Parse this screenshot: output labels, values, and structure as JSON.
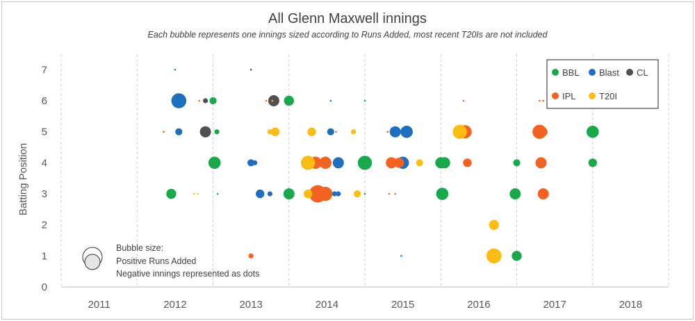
{
  "chart_data": {
    "type": "bubble",
    "title": "All Glenn Maxwell innings",
    "subtitle": "Each bubble represents one innings sized according to Runs Added, most recent T20Is are not included",
    "ylabel": "Batting Position",
    "xlabel": "",
    "x_ticks": [
      "2011",
      "2012",
      "2013",
      "2014",
      "2015",
      "2016",
      "2017",
      "2018"
    ],
    "y_ticks": [
      0,
      1,
      2,
      3,
      4,
      5,
      6,
      7
    ],
    "xlim": [
      2010.5,
      2018.5
    ],
    "ylim": [
      0,
      7.5
    ],
    "grid": "vertical-dashed",
    "legend_position": "top-right",
    "colors": {
      "BBL": "#19a84b",
      "Blast": "#1f6fbf",
      "CL": "#505050",
      "IPL": "#f26322",
      "T20I": "#fbbd13"
    },
    "series": [
      {
        "name": "BBL",
        "points": [
          [
            2011.95,
            3,
            4
          ],
          [
            2012.0,
            7,
            0
          ],
          [
            2012.5,
            6,
            2
          ],
          [
            2012.52,
            4,
            6
          ],
          [
            2012.55,
            5,
            1
          ],
          [
            2012.56,
            3,
            0
          ],
          [
            2013.5,
            6,
            4
          ],
          [
            2013.5,
            3,
            5
          ],
          [
            2014.5,
            4,
            8
          ],
          [
            2014.5,
            6,
            0
          ],
          [
            2014.5,
            3,
            0
          ],
          [
            2015.5,
            4,
            5
          ],
          [
            2015.55,
            4,
            5
          ],
          [
            2015.52,
            3,
            6
          ],
          [
            2016.5,
            4,
            2
          ],
          [
            2016.5,
            1,
            4
          ],
          [
            2016.48,
            3,
            5
          ],
          [
            2017.5,
            5,
            6
          ],
          [
            2017.5,
            4,
            3
          ]
        ]
      },
      {
        "name": "Blast",
        "points": [
          [
            2012.05,
            6,
            9
          ],
          [
            2012.05,
            5,
            2
          ],
          [
            2013.0,
            4,
            2
          ],
          [
            2013.05,
            4,
            1
          ],
          [
            2013.12,
            3,
            3
          ],
          [
            2013.25,
            3,
            1
          ],
          [
            2014.15,
            4,
            5
          ],
          [
            2014.05,
            6,
            0
          ],
          [
            2014.05,
            5,
            2
          ],
          [
            2014.1,
            3,
            1
          ],
          [
            2014.15,
            3,
            1
          ],
          [
            2014.9,
            5,
            5
          ],
          [
            2015.05,
            5,
            6
          ],
          [
            2015.0,
            4,
            6
          ],
          [
            2014.98,
            1,
            0
          ]
        ]
      },
      {
        "name": "CL",
        "points": [
          [
            2012.4,
            6,
            1
          ],
          [
            2012.4,
            5,
            5
          ],
          [
            2013.3,
            6,
            5
          ],
          [
            2013.0,
            7,
            0
          ]
        ]
      },
      {
        "name": "IPL",
        "points": [
          [
            2011.85,
            5,
            0
          ],
          [
            2012.32,
            6,
            0
          ],
          [
            2013.0,
            1,
            1
          ],
          [
            2013.2,
            6,
            0
          ],
          [
            2013.25,
            5,
            0
          ],
          [
            2013.85,
            4,
            6
          ],
          [
            2013.88,
            3,
            12
          ],
          [
            2013.98,
            3,
            8
          ],
          [
            2013.98,
            4,
            6
          ],
          [
            2014.12,
            5,
            0
          ],
          [
            2014.8,
            5,
            0
          ],
          [
            2014.85,
            4,
            5
          ],
          [
            2014.95,
            4,
            4
          ],
          [
            2014.82,
            3,
            0
          ],
          [
            2014.9,
            3,
            0
          ],
          [
            2015.8,
            6,
            0
          ],
          [
            2015.82,
            5,
            7
          ],
          [
            2015.85,
            4,
            3
          ],
          [
            2016.8,
            5,
            8
          ],
          [
            2016.85,
            5,
            3
          ],
          [
            2016.82,
            4,
            5
          ],
          [
            2016.85,
            3,
            5
          ],
          [
            2016.8,
            6,
            0
          ],
          [
            2016.85,
            6,
            0
          ]
        ]
      },
      {
        "name": "T20I",
        "points": [
          [
            2012.25,
            3,
            0
          ],
          [
            2012.3,
            3,
            0
          ],
          [
            2013.28,
            6,
            0
          ],
          [
            2013.25,
            5,
            1
          ],
          [
            2013.32,
            5,
            3
          ],
          [
            2013.8,
            5,
            3
          ],
          [
            2013.75,
            4,
            8
          ],
          [
            2013.75,
            3,
            3
          ],
          [
            2014.35,
            5,
            1
          ],
          [
            2014.4,
            3,
            2
          ],
          [
            2015.22,
            4,
            2
          ],
          [
            2015.75,
            5,
            8
          ],
          [
            2016.2,
            2,
            4
          ],
          [
            2016.2,
            1,
            9
          ]
        ]
      }
    ],
    "legend": {
      "entries": [
        "BBL",
        "Blast",
        "CL",
        "IPL",
        "T20I"
      ]
    },
    "size_note": {
      "line1": "Bubble size:",
      "line2": "Positive Runs Added",
      "line3": "Negative innings represented as dots"
    }
  }
}
